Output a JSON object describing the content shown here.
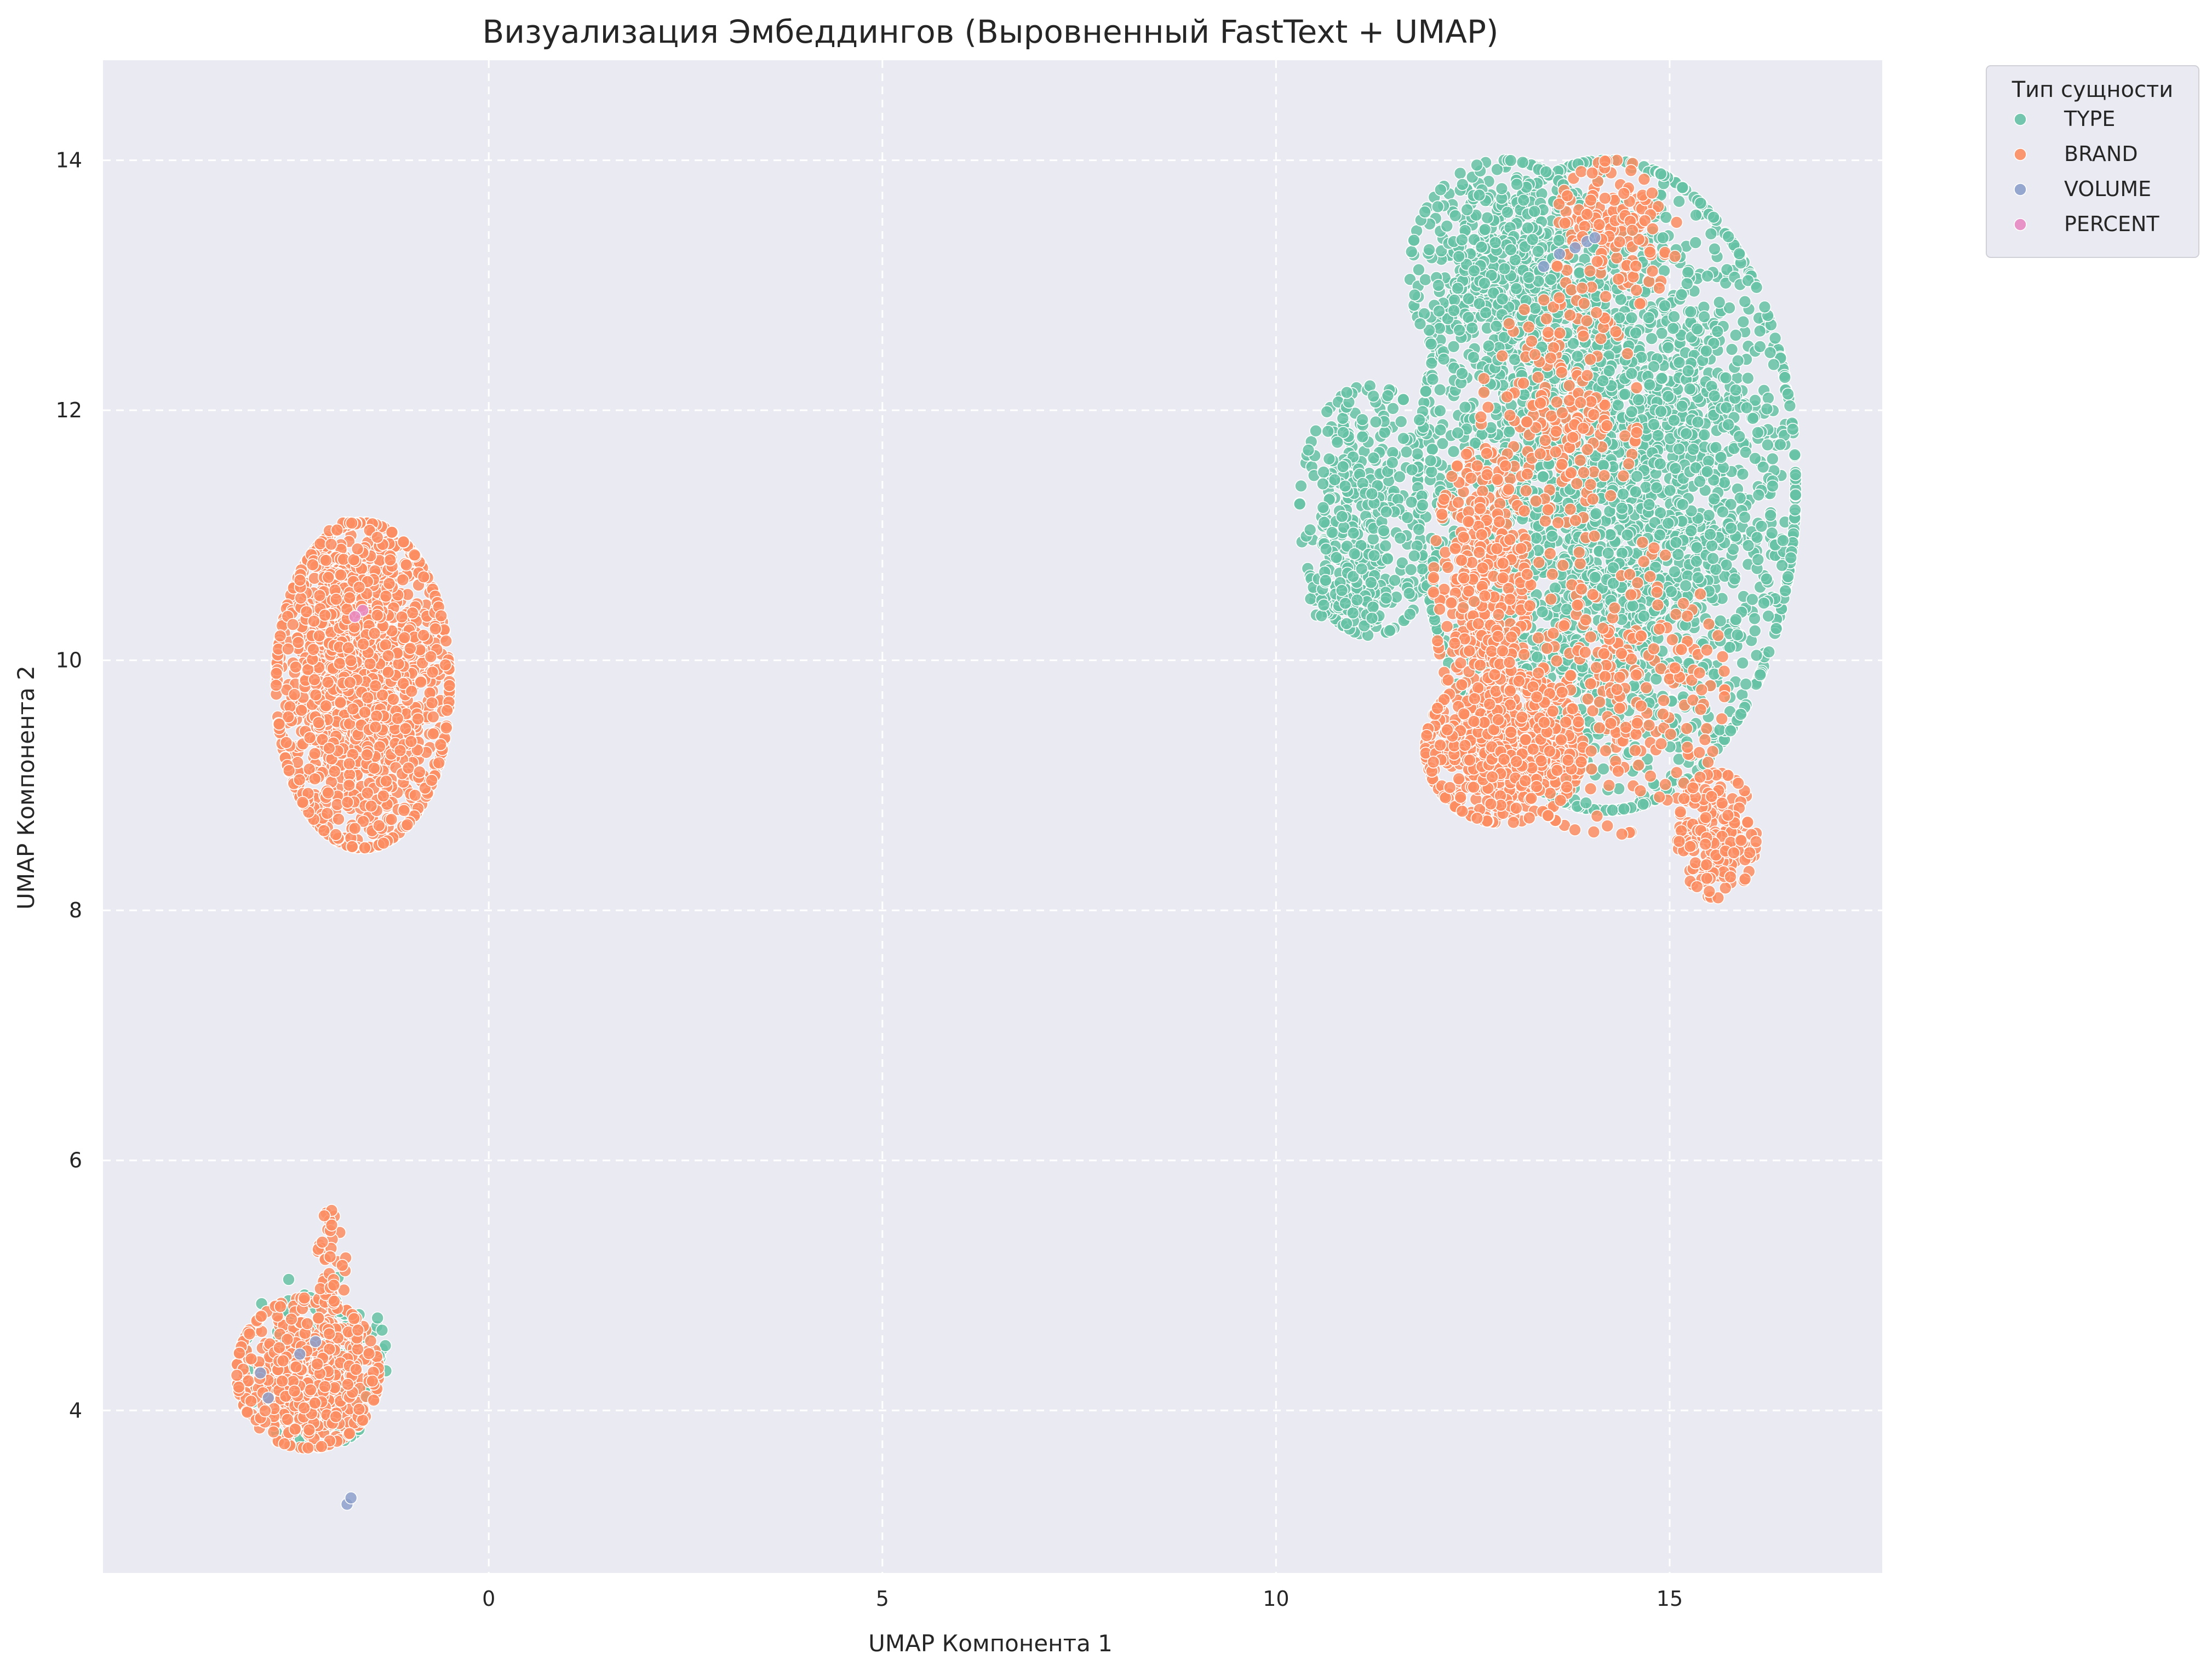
{
  "chart_data": {
    "type": "scatter",
    "title": "Визуализация Эмбеддингов (Выровненный FastText + UMAP)",
    "xlabel": "UMAP Компонента 1",
    "ylabel": "UMAP Компонента 2",
    "xlim": [
      -4.9,
      17.7
    ],
    "ylim": [
      2.7,
      14.8
    ],
    "xticks": [
      0,
      5,
      10,
      15
    ],
    "yticks": [
      4,
      6,
      8,
      10,
      12,
      14
    ],
    "grid": true,
    "background": "#eaeaf2",
    "legend": {
      "title": "Тип сущности",
      "placement": "outside-top-right",
      "entries": [
        "TYPE",
        "BRAND",
        "VOLUME",
        "PERCENT"
      ]
    },
    "series": [
      {
        "name": "TYPE",
        "color": "#66c2a5",
        "clusters": [
          {
            "cx": 14.2,
            "cy": 11.4,
            "rx": 2.4,
            "ry": 2.6,
            "count": 3000
          },
          {
            "cx": 12.9,
            "cy": 13.1,
            "rx": 1.2,
            "ry": 0.9,
            "count": 500
          },
          {
            "cx": 11.2,
            "cy": 11.2,
            "rx": 0.9,
            "ry": 1.0,
            "count": 350
          },
          {
            "cx": 10.9,
            "cy": 10.5,
            "rx": 0.5,
            "ry": 0.25,
            "count": 80
          },
          {
            "cx": -2.2,
            "cy": 4.4,
            "rx": 0.9,
            "ry": 0.7,
            "count": 160
          }
        ]
      },
      {
        "name": "BRAND",
        "color": "#fc8d62",
        "clusters": [
          {
            "cx": -1.6,
            "cy": 9.8,
            "rx": 1.1,
            "ry": 1.3,
            "count": 1600
          },
          {
            "cx": -1.8,
            "cy": 10.6,
            "rx": 0.6,
            "ry": 0.5,
            "count": 150
          },
          {
            "cx": -2.3,
            "cy": 4.3,
            "rx": 0.9,
            "ry": 0.6,
            "count": 600
          },
          {
            "cx": -2.0,
            "cy": 5.2,
            "rx": 0.2,
            "ry": 0.4,
            "count": 40
          },
          {
            "cx": 12.9,
            "cy": 9.3,
            "rx": 1.0,
            "ry": 0.6,
            "count": 700
          },
          {
            "cx": 12.6,
            "cy": 10.6,
            "rx": 0.6,
            "ry": 1.1,
            "count": 350
          },
          {
            "cx": 15.6,
            "cy": 8.6,
            "rx": 0.5,
            "ry": 0.5,
            "count": 200
          },
          {
            "cx": 14.2,
            "cy": 9.8,
            "rx": 1.5,
            "ry": 1.2,
            "count": 300
          },
          {
            "cx": 14.3,
            "cy": 13.4,
            "rx": 0.8,
            "ry": 0.6,
            "count": 150
          },
          {
            "cx": 13.6,
            "cy": 12.0,
            "rx": 1.0,
            "ry": 0.9,
            "count": 200
          }
        ]
      },
      {
        "name": "VOLUME",
        "color": "#8da0cb",
        "points": [
          [
            13.8,
            13.3
          ],
          [
            13.95,
            13.35
          ],
          [
            14.05,
            13.38
          ],
          [
            13.6,
            13.25
          ],
          [
            13.4,
            13.15
          ],
          [
            -2.2,
            4.55
          ],
          [
            -2.4,
            4.45
          ],
          [
            -2.9,
            4.3
          ],
          [
            -2.8,
            4.1
          ],
          [
            -1.8,
            3.25
          ],
          [
            -1.75,
            3.3
          ]
        ]
      },
      {
        "name": "PERCENT",
        "color": "#e78ac3",
        "points": [
          [
            -1.6,
            10.4
          ],
          [
            -1.7,
            10.35
          ]
        ]
      }
    ]
  }
}
